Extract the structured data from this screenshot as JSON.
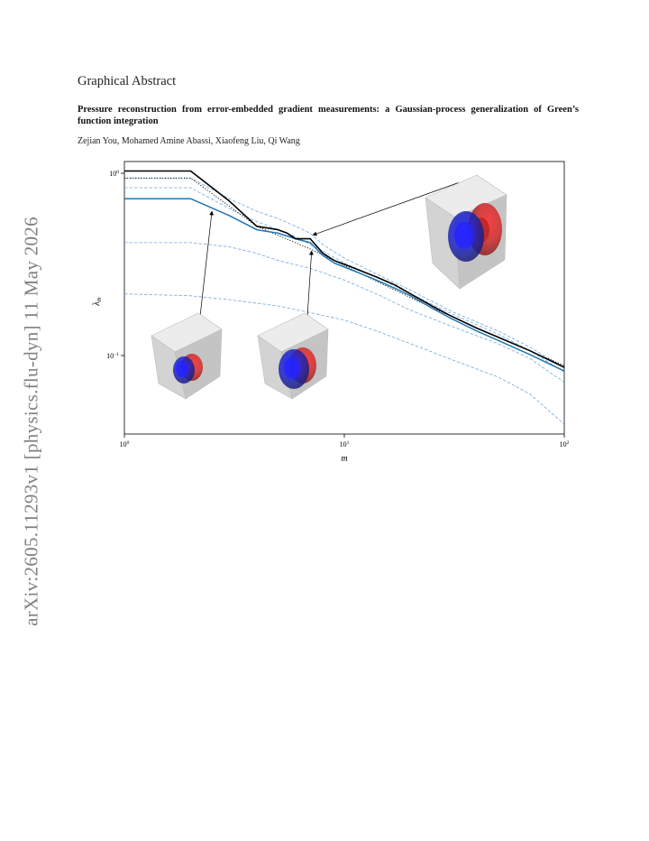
{
  "sidebar": {
    "arxiv_id": "arXiv:2605.11293v1  [physics.flu-dyn]  11 May 2026"
  },
  "paper": {
    "section_heading": "Graphical Abstract",
    "title": "Pressure reconstruction from error-embedded gradient measurements: a Gaussian-process generalization of Green’s function integration",
    "authors": "Zejian You, Mohamed Amine Abassi, Xiaofeng Liu, Qi Wang"
  },
  "chart_data": {
    "type": "line",
    "xlabel": "m",
    "ylabel": "λ_m",
    "xscale": "log",
    "yscale": "log",
    "xlim": [
      1,
      100
    ],
    "ylim": [
      0.04,
      1.1
    ],
    "grid": false,
    "x_tick_labels": [
      "10^0",
      "10^1",
      "10^2"
    ],
    "y_tick_labels": [
      "10^0",
      "10^-1"
    ],
    "series": [
      {
        "style": "black-solid",
        "color": "#000000",
        "x": [
          1,
          2,
          3,
          4,
          5,
          5.5,
          6,
          7,
          8,
          9,
          10,
          12,
          14,
          17,
          20,
          25,
          30,
          40,
          50,
          70,
          100
        ],
        "y": [
          0.98,
          0.98,
          0.68,
          0.5,
          0.48,
          0.46,
          0.43,
          0.43,
          0.36,
          0.33,
          0.315,
          0.29,
          0.27,
          0.245,
          0.22,
          0.19,
          0.17,
          0.145,
          0.13,
          0.11,
          0.09
        ]
      },
      {
        "style": "blue-solid",
        "color": "#1f77b4",
        "x": [
          1,
          2,
          3,
          4,
          5,
          6,
          7,
          8,
          9,
          10,
          12,
          14,
          17,
          20,
          25,
          30,
          40,
          50,
          70,
          100
        ],
        "y": [
          0.7,
          0.7,
          0.57,
          0.48,
          0.46,
          0.43,
          0.41,
          0.35,
          0.32,
          0.305,
          0.28,
          0.26,
          0.235,
          0.215,
          0.185,
          0.165,
          0.14,
          0.125,
          0.105,
          0.086
        ]
      },
      {
        "style": "black-dotted",
        "color": "#000000",
        "x": [
          1,
          2,
          4,
          7,
          10,
          20,
          40,
          100
        ],
        "y": [
          0.9,
          0.9,
          0.5,
          0.38,
          0.31,
          0.21,
          0.145,
          0.092
        ]
      },
      {
        "style": "blue-dashed",
        "color": "#6fa8dc",
        "x": [
          1,
          2,
          3,
          4,
          5,
          6,
          7,
          8,
          10,
          14,
          20,
          30,
          50,
          70,
          100
        ],
        "y": [
          0.9,
          0.9,
          0.7,
          0.6,
          0.55,
          0.5,
          0.46,
          0.4,
          0.34,
          0.28,
          0.23,
          0.18,
          0.14,
          0.115,
          0.09
        ]
      },
      {
        "style": "blue-dashed",
        "color": "#6fa8dc",
        "x": [
          1,
          2,
          3,
          4,
          5,
          6,
          8,
          10,
          14,
          20,
          30,
          50,
          70,
          100
        ],
        "y": [
          0.8,
          0.8,
          0.62,
          0.53,
          0.48,
          0.44,
          0.37,
          0.32,
          0.27,
          0.22,
          0.175,
          0.135,
          0.11,
          0.085
        ]
      },
      {
        "style": "blue-dashed",
        "color": "#6fa8dc",
        "x": [
          1,
          2,
          3,
          4,
          5,
          7,
          10,
          14,
          20,
          30,
          50,
          70,
          100
        ],
        "y": [
          0.41,
          0.41,
          0.39,
          0.36,
          0.33,
          0.3,
          0.26,
          0.22,
          0.18,
          0.15,
          0.12,
          0.1,
          0.075
        ]
      },
      {
        "style": "blue-dashed",
        "color": "#6fa8dc",
        "x": [
          1,
          2,
          3,
          5,
          7,
          10,
          14,
          20,
          30,
          50,
          70,
          100
        ],
        "y": [
          0.22,
          0.215,
          0.205,
          0.19,
          0.175,
          0.16,
          0.14,
          0.12,
          0.1,
          0.08,
          0.065,
          0.045
        ]
      }
    ],
    "annotations": [
      {
        "from": [
          2.2,
          0.16
        ],
        "to": [
          2.5,
          0.6
        ]
      },
      {
        "from": [
          6.8,
          0.17
        ],
        "to": [
          7.1,
          0.37
        ]
      },
      {
        "from": [
          33,
          0.85
        ],
        "to": [
          7.2,
          0.45
        ]
      }
    ]
  }
}
